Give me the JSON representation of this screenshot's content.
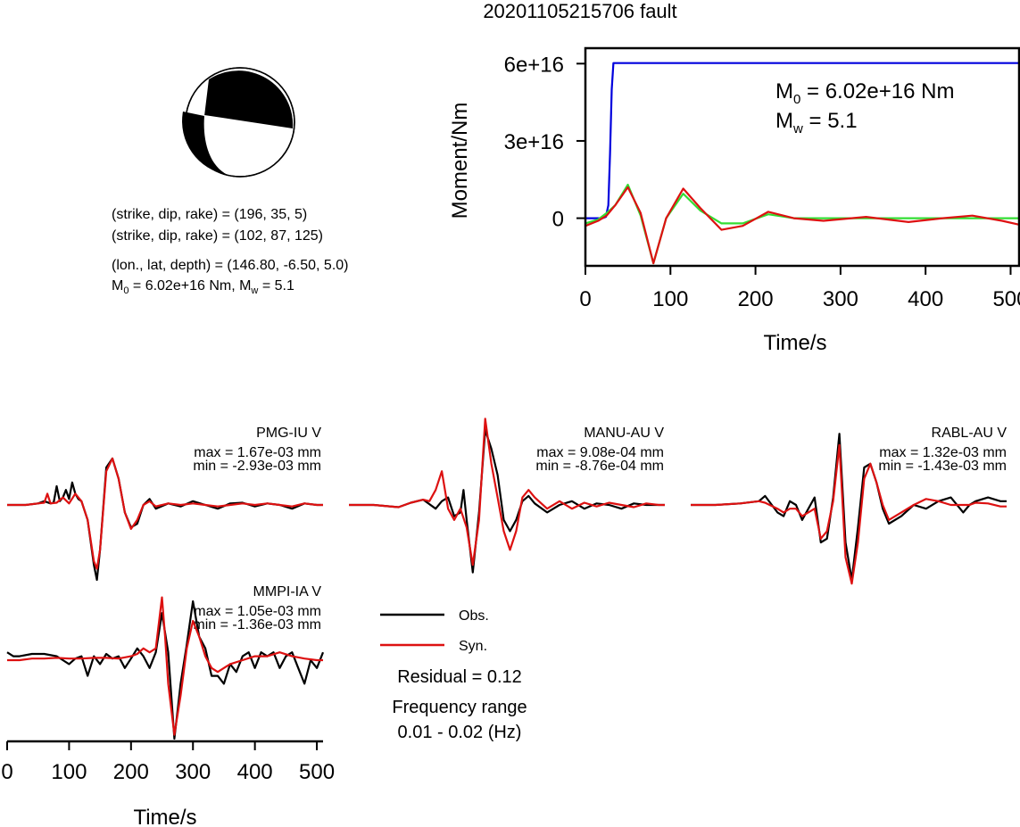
{
  "title": "20201105215706 fault",
  "params": {
    "plane1": "(strike, dip, rake) = (196, 35, 5)",
    "plane2": "(strike, dip, rake) = (102, 87, 125)",
    "location": "(lon., lat, depth) = (146.80, -6.50, 5.0)",
    "m0_text": "M",
    "m0_sub": "0",
    "m0_val": " = 6.02e+16 Nm, M",
    "mw_sub": "w",
    "mw_val": " = 5.1"
  },
  "colors": {
    "moment": "#0000dd",
    "stf_obs": "#33dd33",
    "syn": "#dd1111",
    "obs": "#000000"
  },
  "chart_data": [
    {
      "type": "line",
      "ylabel": "Moment/Nm",
      "xlabel": "Time/s",
      "xlim": [
        0,
        510
      ],
      "ylim": [
        -1.85e+16,
        6.6e+16
      ],
      "xticks": [
        0,
        100,
        200,
        300,
        400,
        500
      ],
      "yticks": [
        {
          "value": 0,
          "label": "0"
        },
        {
          "value": 3e+16,
          "label": "3e+16"
        },
        {
          "value": 6e+16,
          "label": "6e+16"
        }
      ],
      "annotation": {
        "m0_label": "M",
        "m0_sub": "0",
        "m0_value": " = 6.02e+16 Nm",
        "mw_label": "M",
        "mw_sub": "w",
        "mw_value": " = 5.1"
      },
      "series": [
        {
          "color": "#0000dd",
          "x": [
            0,
            20,
            24,
            27,
            29,
            31,
            33,
            510
          ],
          "y": [
            0,
            0,
            500000000000000.0,
            5000000000000000.0,
            2.5e+16,
            5e+16,
            6.02e+16,
            6.02e+16
          ]
        },
        {
          "color": "#33dd33",
          "x": [
            0,
            15,
            25,
            35,
            50,
            65,
            80,
            95,
            115,
            135,
            160,
            185,
            215,
            245,
            280,
            330,
            400,
            460,
            510
          ],
          "y": [
            -2000000000000000.0,
            -500000000000000.0,
            2000000000000000.0,
            5000000000000000.0,
            1.3e+16,
            1000000000000000.0,
            -1.75e+16,
            0,
            9500000000000000.0,
            3000000000000000.0,
            -2000000000000000.0,
            -2000000000000000.0,
            1500000000000000.0,
            0,
            0,
            0,
            0,
            0,
            0
          ]
        },
        {
          "color": "#dd1111",
          "x": [
            0,
            15,
            25,
            35,
            50,
            65,
            80,
            95,
            115,
            135,
            160,
            185,
            215,
            245,
            280,
            330,
            380,
            420,
            455,
            490,
            510
          ],
          "y": [
            -3000000000000000.0,
            -1000000000000000.0,
            1000000000000000.0,
            5000000000000000.0,
            1.2e+16,
            2000000000000000.0,
            -1.75e+16,
            0,
            1.15e+16,
            4000000000000000.0,
            -4500000000000000.0,
            -3000000000000000.0,
            2500000000000000.0,
            0,
            -1000000000000000.0,
            500000000000000.0,
            -1500000000000000.0,
            0,
            1000000000000000.0,
            -1000000000000000.0,
            -2500000000000000.0
          ]
        }
      ]
    },
    {
      "type": "line",
      "station": "PMG-IU V",
      "max_label": "max = 1.67e-03 mm",
      "min_label": "min = -2.93e-03 mm",
      "xlim": [
        0,
        510
      ],
      "ylim": [
        -1,
        1
      ],
      "series": [
        {
          "name": "Obs.",
          "color": "#000000",
          "x": [
            0,
            30,
            50,
            60,
            70,
            75,
            80,
            85,
            90,
            95,
            100,
            105,
            110,
            115,
            120,
            130,
            140,
            145,
            150,
            160,
            170,
            180,
            190,
            200,
            210,
            220,
            230,
            240,
            260,
            280,
            300,
            320,
            340,
            360,
            380,
            400,
            420,
            440,
            460,
            480,
            500,
            510
          ],
          "y": [
            0,
            0,
            0.02,
            0.05,
            0.02,
            0.03,
            0.25,
            0.05,
            0.1,
            0.2,
            0.08,
            0.3,
            0.15,
            0.08,
            0.05,
            -0.2,
            -0.8,
            -1.0,
            -0.6,
            0.5,
            0.62,
            0.35,
            -0.1,
            -0.3,
            -0.25,
            0,
            0.08,
            -0.05,
            0.02,
            -0.02,
            0.05,
            0,
            -0.05,
            0.02,
            0.03,
            -0.02,
            0.02,
            0,
            -0.05,
            0.02,
            0,
            0
          ]
        },
        {
          "name": "Syn.",
          "color": "#dd1111",
          "x": [
            0,
            30,
            50,
            60,
            65,
            70,
            80,
            90,
            100,
            110,
            120,
            130,
            140,
            145,
            150,
            160,
            170,
            180,
            190,
            200,
            210,
            220,
            230,
            240,
            260,
            280,
            300,
            320,
            340,
            360,
            380,
            400,
            420,
            440,
            460,
            480,
            500,
            510
          ],
          "y": [
            0,
            0,
            0.02,
            0.03,
            0.15,
            0.02,
            0.03,
            0.1,
            0.02,
            0.15,
            0.05,
            -0.2,
            -0.75,
            -0.85,
            -0.6,
            0.45,
            0.62,
            0.35,
            -0.1,
            -0.32,
            -0.2,
            0,
            0.05,
            -0.02,
            0.02,
            0,
            0.02,
            0,
            -0.02,
            0,
            0.02,
            0,
            0.02,
            0,
            -0.02,
            0.02,
            0,
            0
          ]
        }
      ]
    },
    {
      "type": "line",
      "station": "MANU-AU V",
      "max_label": "max = 9.08e-04 mm",
      "min_label": "min = -8.76e-04 mm",
      "xlim": [
        0,
        510
      ],
      "ylim": [
        -1,
        1
      ],
      "series": [
        {
          "name": "Obs.",
          "color": "#000000",
          "x": [
            0,
            40,
            80,
            100,
            120,
            140,
            150,
            160,
            170,
            180,
            185,
            190,
            200,
            210,
            220,
            230,
            240,
            250,
            260,
            270,
            280,
            290,
            300,
            320,
            340,
            360,
            380,
            400,
            420,
            440,
            460,
            480,
            500,
            510
          ],
          "y": [
            0,
            0,
            -0.03,
            0.03,
            0.07,
            -0.05,
            0.05,
            0.1,
            -0.15,
            -0.1,
            0.2,
            -0.2,
            -0.9,
            -0.1,
            1.0,
            0.75,
            0.4,
            -0.2,
            -0.35,
            -0.2,
            0.05,
            0.12,
            0.02,
            -0.1,
            0,
            0.05,
            -0.05,
            0.02,
            0,
            -0.05,
            0.02,
            0,
            0,
            0
          ]
        },
        {
          "name": "Syn.",
          "color": "#dd1111",
          "x": [
            0,
            40,
            80,
            100,
            120,
            130,
            140,
            150,
            160,
            170,
            180,
            190,
            200,
            210,
            220,
            230,
            240,
            250,
            260,
            270,
            280,
            290,
            300,
            320,
            340,
            360,
            380,
            400,
            420,
            440,
            460,
            480,
            500,
            510
          ],
          "y": [
            0,
            0,
            -0.03,
            0.03,
            0.07,
            0.05,
            0.2,
            0.45,
            -0.05,
            -0.2,
            -0.05,
            -0.3,
            -0.8,
            -0.2,
            1.15,
            0.55,
            0.1,
            -0.35,
            -0.6,
            -0.35,
            0.1,
            0.2,
            0.1,
            -0.05,
            0.05,
            -0.05,
            0.03,
            -0.02,
            0.03,
            0,
            -0.03,
            0.02,
            0,
            0
          ]
        }
      ]
    },
    {
      "type": "line",
      "station": "RABL-AU V",
      "max_label": "max = 1.32e-03 mm",
      "min_label": "min = -1.43e-03 mm",
      "xlim": [
        0,
        510
      ],
      "ylim": [
        -1,
        1
      ],
      "series": [
        {
          "name": "Obs.",
          "color": "#000000",
          "x": [
            0,
            40,
            80,
            110,
            120,
            140,
            150,
            160,
            170,
            180,
            200,
            210,
            220,
            230,
            240,
            250,
            260,
            270,
            280,
            290,
            300,
            310,
            320,
            340,
            360,
            380,
            400,
            420,
            440,
            450,
            460,
            480,
            500,
            510
          ],
          "y": [
            0,
            0,
            0.02,
            0.05,
            0.12,
            -0.1,
            -0.15,
            0.05,
            0,
            -0.2,
            0.1,
            -0.5,
            -0.45,
            0.1,
            0.95,
            -0.5,
            -1.0,
            -0.3,
            0.5,
            0.55,
            0.3,
            -0.05,
            -0.25,
            -0.15,
            0,
            -0.05,
            0.05,
            0.1,
            -0.1,
            0,
            0.05,
            0.1,
            0.05,
            0.05
          ]
        },
        {
          "name": "Syn.",
          "color": "#dd1111",
          "x": [
            0,
            40,
            80,
            110,
            120,
            140,
            150,
            160,
            170,
            180,
            200,
            210,
            220,
            230,
            240,
            250,
            260,
            270,
            280,
            290,
            300,
            310,
            320,
            340,
            360,
            380,
            400,
            420,
            440,
            450,
            460,
            480,
            500,
            510
          ],
          "y": [
            0,
            0,
            0.02,
            0.05,
            0.03,
            -0.05,
            -0.1,
            -0.05,
            -0.05,
            -0.15,
            -0.05,
            -0.45,
            -0.35,
            0.05,
            0.8,
            -0.7,
            -1.05,
            -0.5,
            0.35,
            0.55,
            0.3,
            0,
            -0.2,
            -0.1,
            0,
            0.08,
            0.05,
            0,
            0,
            0,
            0.03,
            0.02,
            -0.02,
            -0.02
          ]
        }
      ]
    },
    {
      "type": "line",
      "station": "MMPI-IA V",
      "max_label": "max = 1.05e-03 mm",
      "min_label": "min = -1.36e-03 mm",
      "xlabel": "Time/s",
      "xlim": [
        0,
        510
      ],
      "ylim": [
        -1,
        1
      ],
      "xticks": [
        0,
        100,
        200,
        300,
        400,
        500
      ],
      "series": [
        {
          "name": "Obs.",
          "color": "#000000",
          "x": [
            0,
            10,
            20,
            40,
            60,
            80,
            90,
            100,
            110,
            120,
            130,
            140,
            150,
            160,
            170,
            180,
            190,
            200,
            210,
            220,
            230,
            240,
            250,
            260,
            270,
            280,
            290,
            300,
            310,
            320,
            330,
            340,
            350,
            360,
            370,
            380,
            390,
            400,
            410,
            420,
            430,
            440,
            450,
            460,
            470,
            480,
            490,
            500,
            510
          ],
          "y": [
            0.1,
            0.05,
            0.05,
            0.08,
            0.08,
            0.05,
            0,
            -0.05,
            0.02,
            0.05,
            -0.2,
            0.05,
            -0.05,
            0.08,
            0.02,
            0.05,
            -0.1,
            0.02,
            0.15,
            0.05,
            -0.1,
            0.1,
            0.6,
            0.1,
            -1.0,
            -0.3,
            0.2,
            0.75,
            0.3,
            0.15,
            -0.2,
            -0.2,
            -0.3,
            -0.05,
            -0.15,
            0.05,
            0.1,
            -0.1,
            0.1,
            0.05,
            0.1,
            -0.1,
            0.05,
            0.1,
            -0.1,
            -0.3,
            0,
            -0.1,
            0.1
          ]
        },
        {
          "name": "Syn.",
          "color": "#dd1111",
          "x": [
            0,
            20,
            40,
            60,
            80,
            100,
            120,
            140,
            160,
            180,
            200,
            210,
            220,
            230,
            240,
            250,
            255,
            260,
            270,
            280,
            290,
            300,
            310,
            320,
            330,
            340,
            360,
            380,
            400,
            420,
            440,
            460,
            480,
            500,
            510
          ],
          "y": [
            0,
            0,
            0.02,
            0.02,
            0.03,
            0.02,
            0.02,
            0.03,
            0.03,
            0.02,
            0.05,
            0.08,
            0.15,
            0.1,
            0.15,
            0.8,
            0.3,
            -0.3,
            -0.95,
            -0.45,
            0.15,
            0.5,
            0.3,
            0.05,
            -0.1,
            -0.15,
            -0.05,
            0,
            0.05,
            0.05,
            0.1,
            0.05,
            0.02,
            0,
            0
          ]
        }
      ]
    }
  ],
  "legend": {
    "obs_label": "Obs.",
    "syn_label": "Syn.",
    "residual": "Residual = 0.12",
    "freq_title": "Frequency range",
    "freq_value": "0.01 - 0.02 (Hz)"
  },
  "axis_bottom": {
    "xlabel": "Time/s"
  }
}
